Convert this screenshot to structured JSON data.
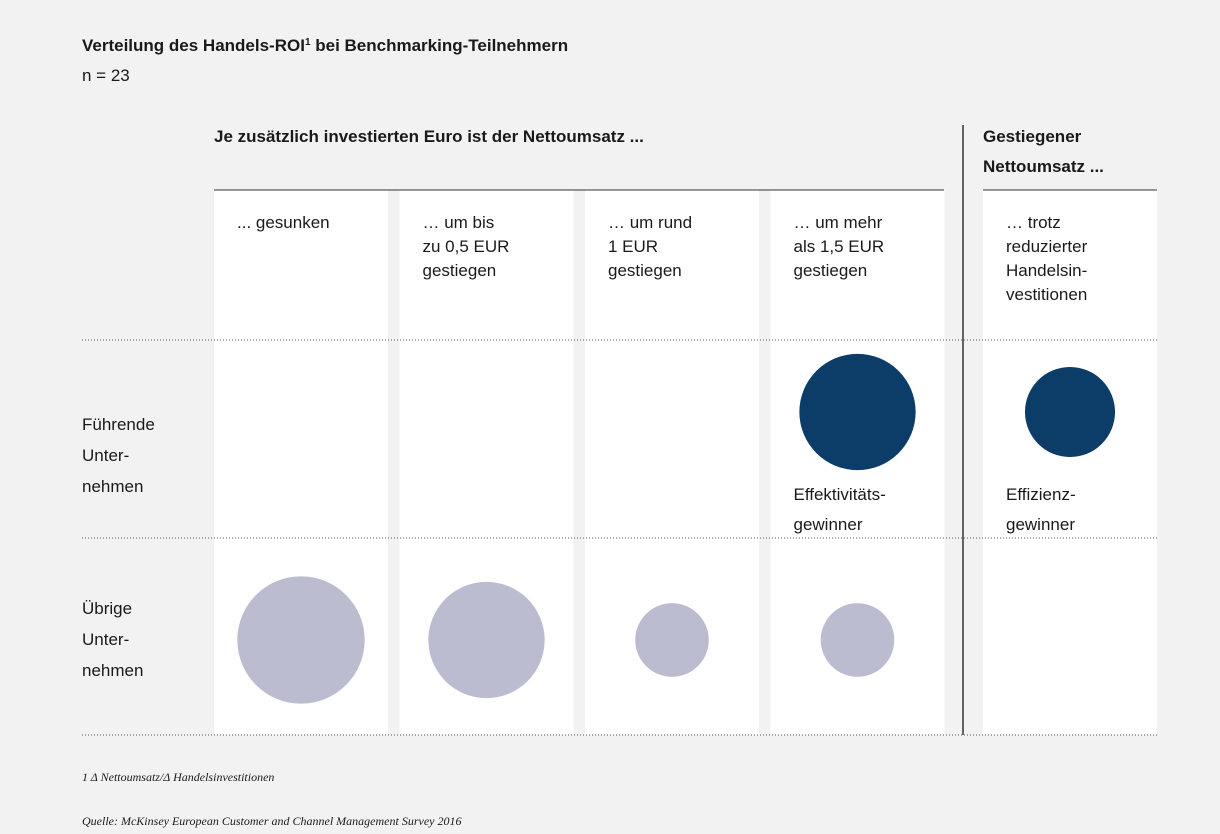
{
  "chart_data": {
    "type": "bubble",
    "title": [
      "Verteilung des Handels-ROI",
      "1",
      " bei Benchmarking-Teilnehmern"
    ],
    "subtitle": "n = 23",
    "group_headers": [
      [
        "Je zusätzlich investierten Euro ist der Nettoumsatz ..."
      ],
      [
        "Gestiegener",
        "Nettoumsatz ..."
      ]
    ],
    "categories": [
      [
        "... gesunken"
      ],
      [
        "… um bis",
        "zu 0,5 EUR",
        "gestiegen"
      ],
      [
        "… um rund",
        "1 EUR",
        "gestiegen"
      ],
      [
        "… um mehr",
        "als 1,5 EUR",
        "gestiegen"
      ],
      [
        "… trotz",
        "reduzierter",
        "Handelsin-",
        "vestitionen"
      ]
    ],
    "series": [
      {
        "name": [
          "Führende",
          "Unter-",
          "nehmen"
        ],
        "color": "#0c3d68",
        "values": [
          null,
          null,
          null,
          5,
          3
        ],
        "annotations": [
          null,
          null,
          null,
          [
            "Effektivitäts-",
            "gewinner"
          ],
          [
            "Effizienz-",
            "gewinner"
          ]
        ]
      },
      {
        "name": [
          "Übrige",
          "Unter-",
          "nehmen"
        ],
        "color": "#bcbcd0",
        "values": [
          6,
          5,
          2,
          2,
          null
        ]
      }
    ],
    "footnote": [
      "1",
      " Δ Nettoumsatz/Δ Handelsinvestitionen"
    ],
    "source": "Quelle: McKinsey European Customer and Channel Management Survey 2016"
  }
}
